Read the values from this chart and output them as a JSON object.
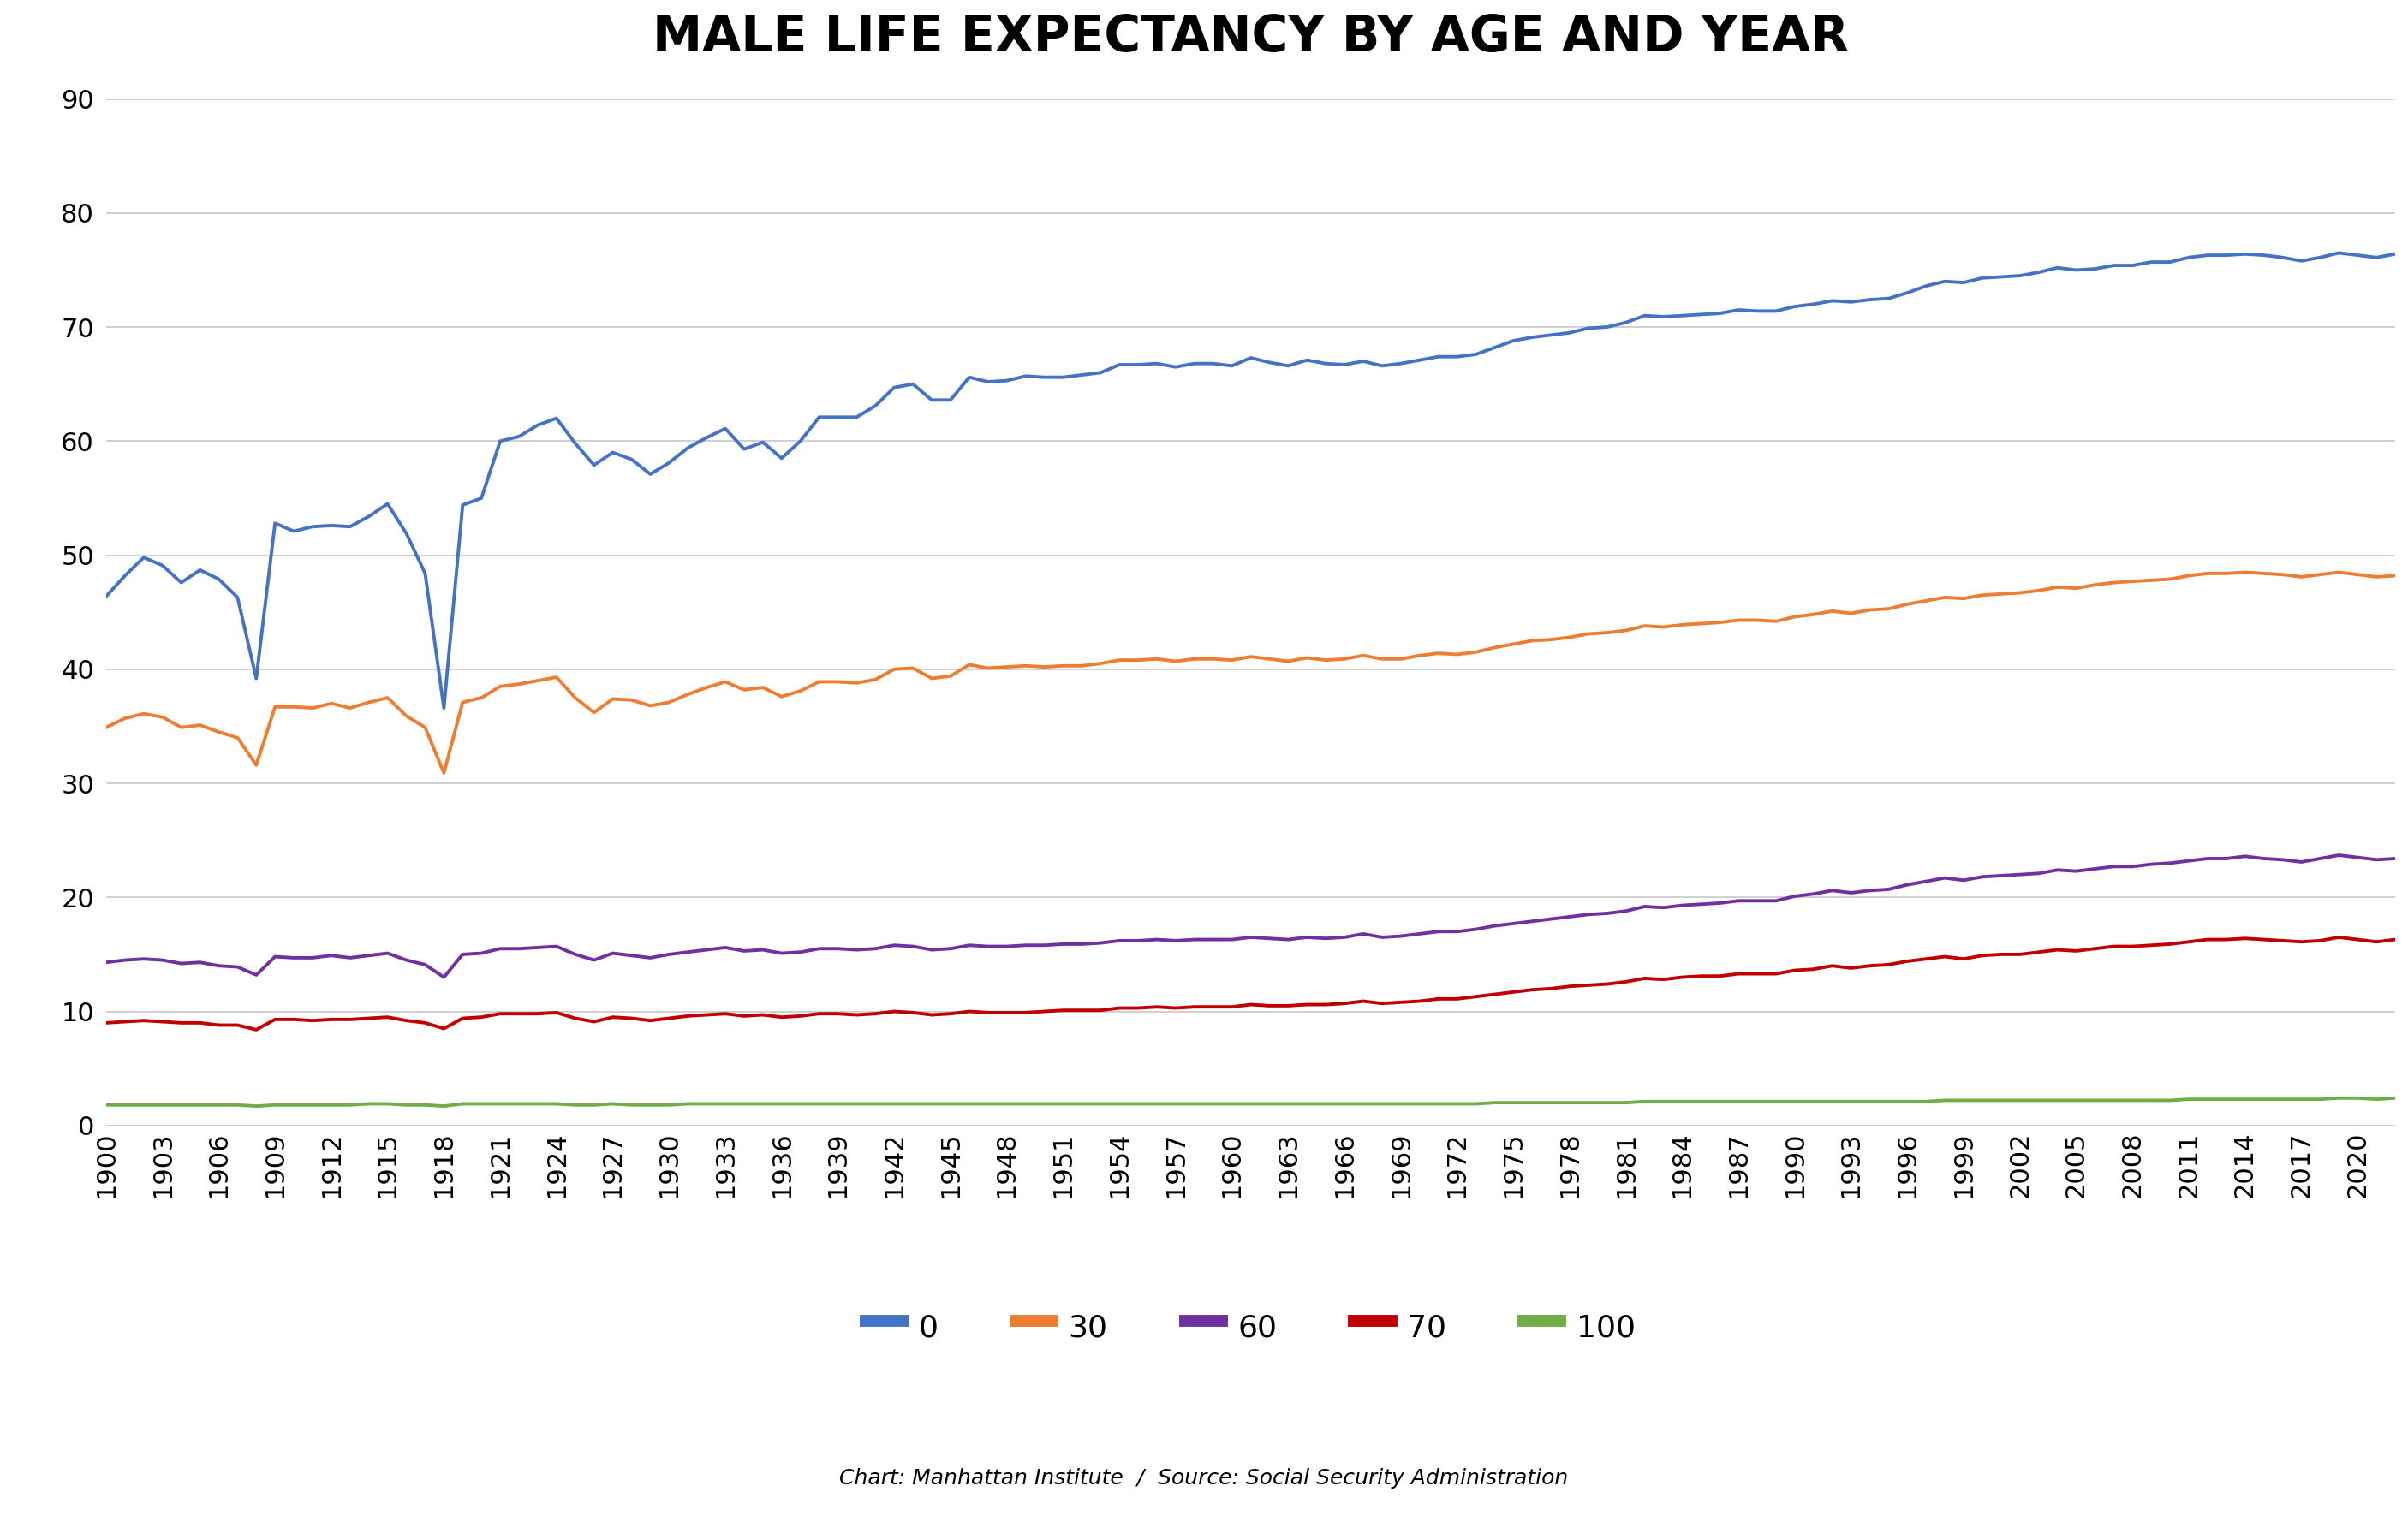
{
  "title": "MALE LIFE EXPECTANCY BY AGE AND YEAR",
  "subtitle": "Chart: Manhattan Institute  /  Source: Social Security Administration",
  "legend_labels": [
    "0",
    "30",
    "60",
    "70",
    "100"
  ],
  "line_colors": [
    "#4472C4",
    "#ED7D31",
    "#7030A0",
    "#C00000",
    "#70AD47"
  ],
  "line_widths": [
    2.8,
    2.8,
    2.8,
    2.8,
    2.8
  ],
  "ylim": [
    0,
    90
  ],
  "yticks": [
    0,
    10,
    20,
    30,
    40,
    50,
    60,
    70,
    80,
    90
  ],
  "years": [
    1900,
    1901,
    1902,
    1903,
    1904,
    1905,
    1906,
    1907,
    1908,
    1909,
    1910,
    1911,
    1912,
    1913,
    1914,
    1915,
    1916,
    1917,
    1918,
    1919,
    1920,
    1921,
    1922,
    1923,
    1924,
    1925,
    1926,
    1927,
    1928,
    1929,
    1930,
    1931,
    1932,
    1933,
    1934,
    1935,
    1936,
    1937,
    1938,
    1939,
    1940,
    1941,
    1942,
    1943,
    1944,
    1945,
    1946,
    1947,
    1948,
    1949,
    1950,
    1951,
    1952,
    1953,
    1954,
    1955,
    1956,
    1957,
    1958,
    1959,
    1960,
    1961,
    1962,
    1963,
    1964,
    1965,
    1966,
    1967,
    1968,
    1969,
    1970,
    1971,
    1972,
    1973,
    1974,
    1975,
    1976,
    1977,
    1978,
    1979,
    1980,
    1981,
    1982,
    1983,
    1984,
    1985,
    1986,
    1987,
    1988,
    1989,
    1990,
    1991,
    1992,
    1993,
    1994,
    1995,
    1996,
    1997,
    1998,
    1999,
    2000,
    2001,
    2002,
    2003,
    2004,
    2005,
    2006,
    2007,
    2008,
    2009,
    2010,
    2011,
    2012,
    2013,
    2014,
    2015,
    2016,
    2017,
    2018,
    2019,
    2020,
    2021,
    2022
  ],
  "age0": [
    46.4,
    48.2,
    49.8,
    49.1,
    47.6,
    48.7,
    47.9,
    46.3,
    39.2,
    52.8,
    52.1,
    52.5,
    52.6,
    52.5,
    53.4,
    54.5,
    51.9,
    48.4,
    36.6,
    54.4,
    55.0,
    60.0,
    60.4,
    61.4,
    62.0,
    59.8,
    57.9,
    59.0,
    58.4,
    57.1,
    58.1,
    59.4,
    60.3,
    61.1,
    59.3,
    59.9,
    58.5,
    60.0,
    62.1,
    62.1,
    62.1,
    63.1,
    64.7,
    65.0,
    63.6,
    63.6,
    65.6,
    65.2,
    65.3,
    65.7,
    65.6,
    65.6,
    65.8,
    66.0,
    66.7,
    66.7,
    66.8,
    66.5,
    66.8,
    66.8,
    66.6,
    67.3,
    66.9,
    66.6,
    67.1,
    66.8,
    66.7,
    67.0,
    66.6,
    66.8,
    67.1,
    67.4,
    67.4,
    67.6,
    68.2,
    68.8,
    69.1,
    69.3,
    69.5,
    69.9,
    70.0,
    70.4,
    71.0,
    70.9,
    71.0,
    71.1,
    71.2,
    71.5,
    71.4,
    71.4,
    71.8,
    72.0,
    72.3,
    72.2,
    72.4,
    72.5,
    73.0,
    73.6,
    74.0,
    73.9,
    74.3,
    74.4,
    74.5,
    74.8,
    75.2,
    75.0,
    75.1,
    75.4,
    75.4,
    75.7,
    75.7,
    76.1,
    76.3,
    76.3,
    76.4,
    76.3,
    76.1,
    75.8,
    76.1,
    76.5,
    76.3,
    76.1,
    76.4
  ],
  "age30": [
    34.9,
    35.7,
    36.1,
    35.8,
    34.9,
    35.1,
    34.5,
    34.0,
    31.6,
    36.7,
    36.7,
    36.6,
    37.0,
    36.6,
    37.1,
    37.5,
    35.9,
    34.9,
    30.9,
    37.1,
    37.5,
    38.5,
    38.7,
    39.0,
    39.3,
    37.5,
    36.2,
    37.4,
    37.3,
    36.8,
    37.1,
    37.8,
    38.4,
    38.9,
    38.2,
    38.4,
    37.6,
    38.1,
    38.9,
    38.9,
    38.8,
    39.1,
    40.0,
    40.1,
    39.2,
    39.4,
    40.4,
    40.1,
    40.2,
    40.3,
    40.2,
    40.3,
    40.3,
    40.5,
    40.8,
    40.8,
    40.9,
    40.7,
    40.9,
    40.9,
    40.8,
    41.1,
    40.9,
    40.7,
    41.0,
    40.8,
    40.9,
    41.2,
    40.9,
    40.9,
    41.2,
    41.4,
    41.3,
    41.5,
    41.9,
    42.2,
    42.5,
    42.6,
    42.8,
    43.1,
    43.2,
    43.4,
    43.8,
    43.7,
    43.9,
    44.0,
    44.1,
    44.3,
    44.3,
    44.2,
    44.6,
    44.8,
    45.1,
    44.9,
    45.2,
    45.3,
    45.7,
    46.0,
    46.3,
    46.2,
    46.5,
    46.6,
    46.7,
    46.9,
    47.2,
    47.1,
    47.4,
    47.6,
    47.7,
    47.8,
    47.9,
    48.2,
    48.4,
    48.4,
    48.5,
    48.4,
    48.3,
    48.1,
    48.3,
    48.5,
    48.3,
    48.1,
    48.2
  ],
  "age60": [
    14.3,
    14.5,
    14.6,
    14.5,
    14.2,
    14.3,
    14.0,
    13.9,
    13.2,
    14.8,
    14.7,
    14.7,
    14.9,
    14.7,
    14.9,
    15.1,
    14.5,
    14.1,
    13.0,
    15.0,
    15.1,
    15.5,
    15.5,
    15.6,
    15.7,
    15.0,
    14.5,
    15.1,
    14.9,
    14.7,
    15.0,
    15.2,
    15.4,
    15.6,
    15.3,
    15.4,
    15.1,
    15.2,
    15.5,
    15.5,
    15.4,
    15.5,
    15.8,
    15.7,
    15.4,
    15.5,
    15.8,
    15.7,
    15.7,
    15.8,
    15.8,
    15.9,
    15.9,
    16.0,
    16.2,
    16.2,
    16.3,
    16.2,
    16.3,
    16.3,
    16.3,
    16.5,
    16.4,
    16.3,
    16.5,
    16.4,
    16.5,
    16.8,
    16.5,
    16.6,
    16.8,
    17.0,
    17.0,
    17.2,
    17.5,
    17.7,
    17.9,
    18.1,
    18.3,
    18.5,
    18.6,
    18.8,
    19.2,
    19.1,
    19.3,
    19.4,
    19.5,
    19.7,
    19.7,
    19.7,
    20.1,
    20.3,
    20.6,
    20.4,
    20.6,
    20.7,
    21.1,
    21.4,
    21.7,
    21.5,
    21.8,
    21.9,
    22.0,
    22.1,
    22.4,
    22.3,
    22.5,
    22.7,
    22.7,
    22.9,
    23.0,
    23.2,
    23.4,
    23.4,
    23.6,
    23.4,
    23.3,
    23.1,
    23.4,
    23.7,
    23.5,
    23.3,
    23.4
  ],
  "age70": [
    9.0,
    9.1,
    9.2,
    9.1,
    9.0,
    9.0,
    8.8,
    8.8,
    8.4,
    9.3,
    9.3,
    9.2,
    9.3,
    9.3,
    9.4,
    9.5,
    9.2,
    9.0,
    8.5,
    9.4,
    9.5,
    9.8,
    9.8,
    9.8,
    9.9,
    9.4,
    9.1,
    9.5,
    9.4,
    9.2,
    9.4,
    9.6,
    9.7,
    9.8,
    9.6,
    9.7,
    9.5,
    9.6,
    9.8,
    9.8,
    9.7,
    9.8,
    10.0,
    9.9,
    9.7,
    9.8,
    10.0,
    9.9,
    9.9,
    9.9,
    10.0,
    10.1,
    10.1,
    10.1,
    10.3,
    10.3,
    10.4,
    10.3,
    10.4,
    10.4,
    10.4,
    10.6,
    10.5,
    10.5,
    10.6,
    10.6,
    10.7,
    10.9,
    10.7,
    10.8,
    10.9,
    11.1,
    11.1,
    11.3,
    11.5,
    11.7,
    11.9,
    12.0,
    12.2,
    12.3,
    12.4,
    12.6,
    12.9,
    12.8,
    13.0,
    13.1,
    13.1,
    13.3,
    13.3,
    13.3,
    13.6,
    13.7,
    14.0,
    13.8,
    14.0,
    14.1,
    14.4,
    14.6,
    14.8,
    14.6,
    14.9,
    15.0,
    15.0,
    15.2,
    15.4,
    15.3,
    15.5,
    15.7,
    15.7,
    15.8,
    15.9,
    16.1,
    16.3,
    16.3,
    16.4,
    16.3,
    16.2,
    16.1,
    16.2,
    16.5,
    16.3,
    16.1,
    16.3
  ],
  "age100": [
    1.8,
    1.8,
    1.8,
    1.8,
    1.8,
    1.8,
    1.8,
    1.8,
    1.7,
    1.8,
    1.8,
    1.8,
    1.8,
    1.8,
    1.9,
    1.9,
    1.8,
    1.8,
    1.7,
    1.9,
    1.9,
    1.9,
    1.9,
    1.9,
    1.9,
    1.8,
    1.8,
    1.9,
    1.8,
    1.8,
    1.8,
    1.9,
    1.9,
    1.9,
    1.9,
    1.9,
    1.9,
    1.9,
    1.9,
    1.9,
    1.9,
    1.9,
    1.9,
    1.9,
    1.9,
    1.9,
    1.9,
    1.9,
    1.9,
    1.9,
    1.9,
    1.9,
    1.9,
    1.9,
    1.9,
    1.9,
    1.9,
    1.9,
    1.9,
    1.9,
    1.9,
    1.9,
    1.9,
    1.9,
    1.9,
    1.9,
    1.9,
    1.9,
    1.9,
    1.9,
    1.9,
    1.9,
    1.9,
    1.9,
    2.0,
    2.0,
    2.0,
    2.0,
    2.0,
    2.0,
    2.0,
    2.0,
    2.1,
    2.1,
    2.1,
    2.1,
    2.1,
    2.1,
    2.1,
    2.1,
    2.1,
    2.1,
    2.1,
    2.1,
    2.1,
    2.1,
    2.1,
    2.1,
    2.2,
    2.2,
    2.2,
    2.2,
    2.2,
    2.2,
    2.2,
    2.2,
    2.2,
    2.2,
    2.2,
    2.2,
    2.2,
    2.3,
    2.3,
    2.3,
    2.3,
    2.3,
    2.3,
    2.3,
    2.3,
    2.4,
    2.4,
    2.3,
    2.4
  ],
  "background_color": "#FFFFFF",
  "grid_color": "#C8C8C8",
  "title_fontsize": 42,
  "axis_fontsize": 22,
  "legend_fontsize": 26,
  "subtitle_fontsize": 18
}
